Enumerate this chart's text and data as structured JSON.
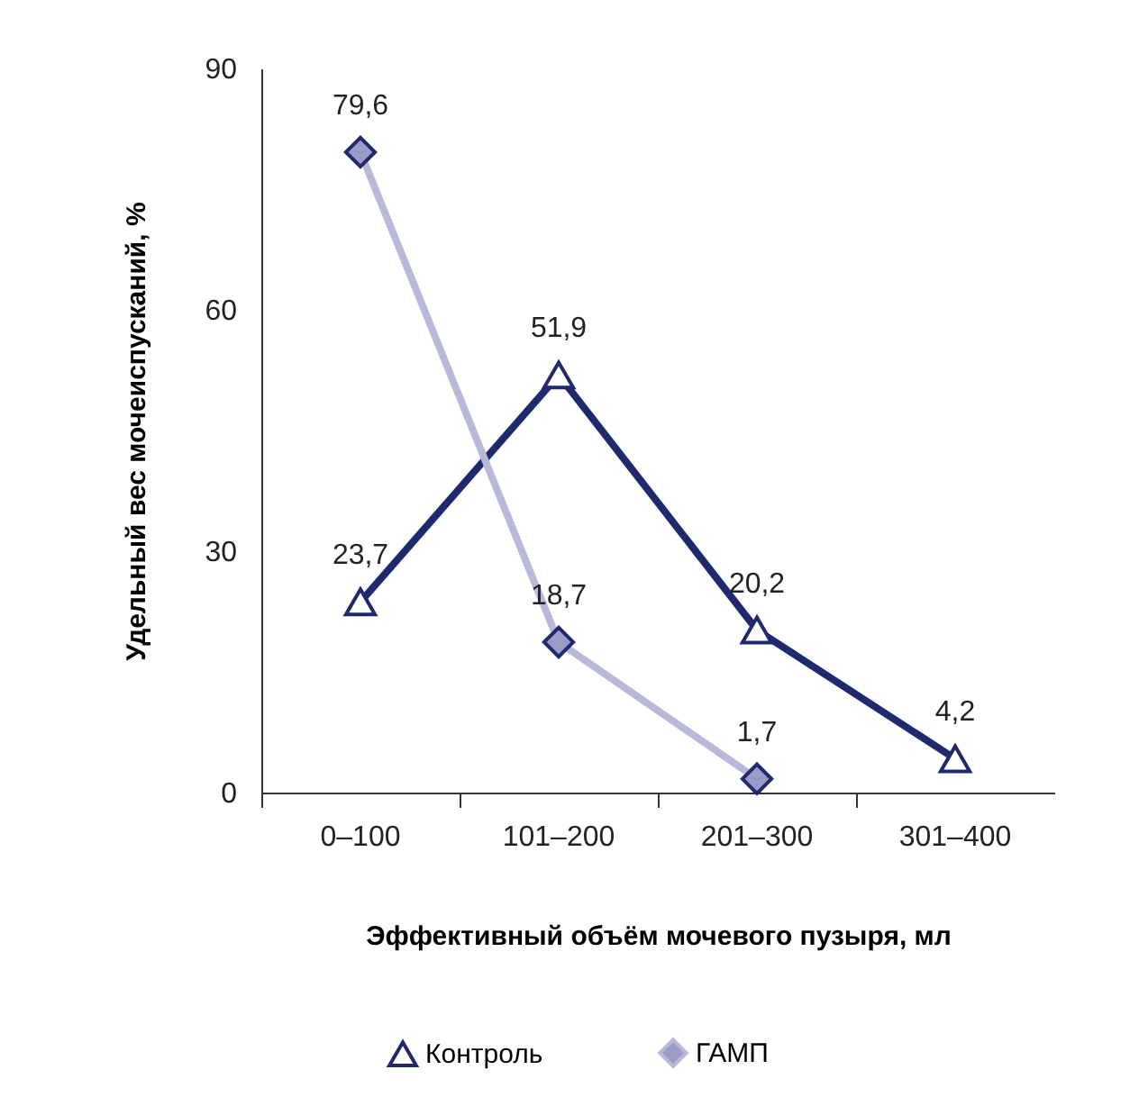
{
  "chart_data": {
    "type": "line",
    "xlabel": "Эффективный объём мочевого пузыря, мл",
    "ylabel": "Удельный вес мочеиспусканий, %",
    "categories": [
      "0–100",
      "101–200",
      "201–300",
      "301–400"
    ],
    "ylim": [
      0,
      90
    ],
    "yticks": [
      0,
      30,
      60,
      90
    ],
    "grid": false,
    "legend": "bottom",
    "line_style": "solid",
    "series": [
      {
        "name": "Контроль",
        "color": "#1f2a6e",
        "marker": "triangle",
        "values": [
          23.7,
          51.9,
          20.2,
          4.2
        ],
        "value_labels": [
          "23,7",
          "51,9",
          "20,2",
          "4,2"
        ]
      },
      {
        "name": "ГАМП",
        "color": "#b8b9d9",
        "marker": "diamond",
        "values": [
          79.6,
          18.7,
          1.7,
          null
        ],
        "value_labels": [
          "79,6",
          "18,7",
          "1,7",
          null
        ]
      }
    ]
  }
}
